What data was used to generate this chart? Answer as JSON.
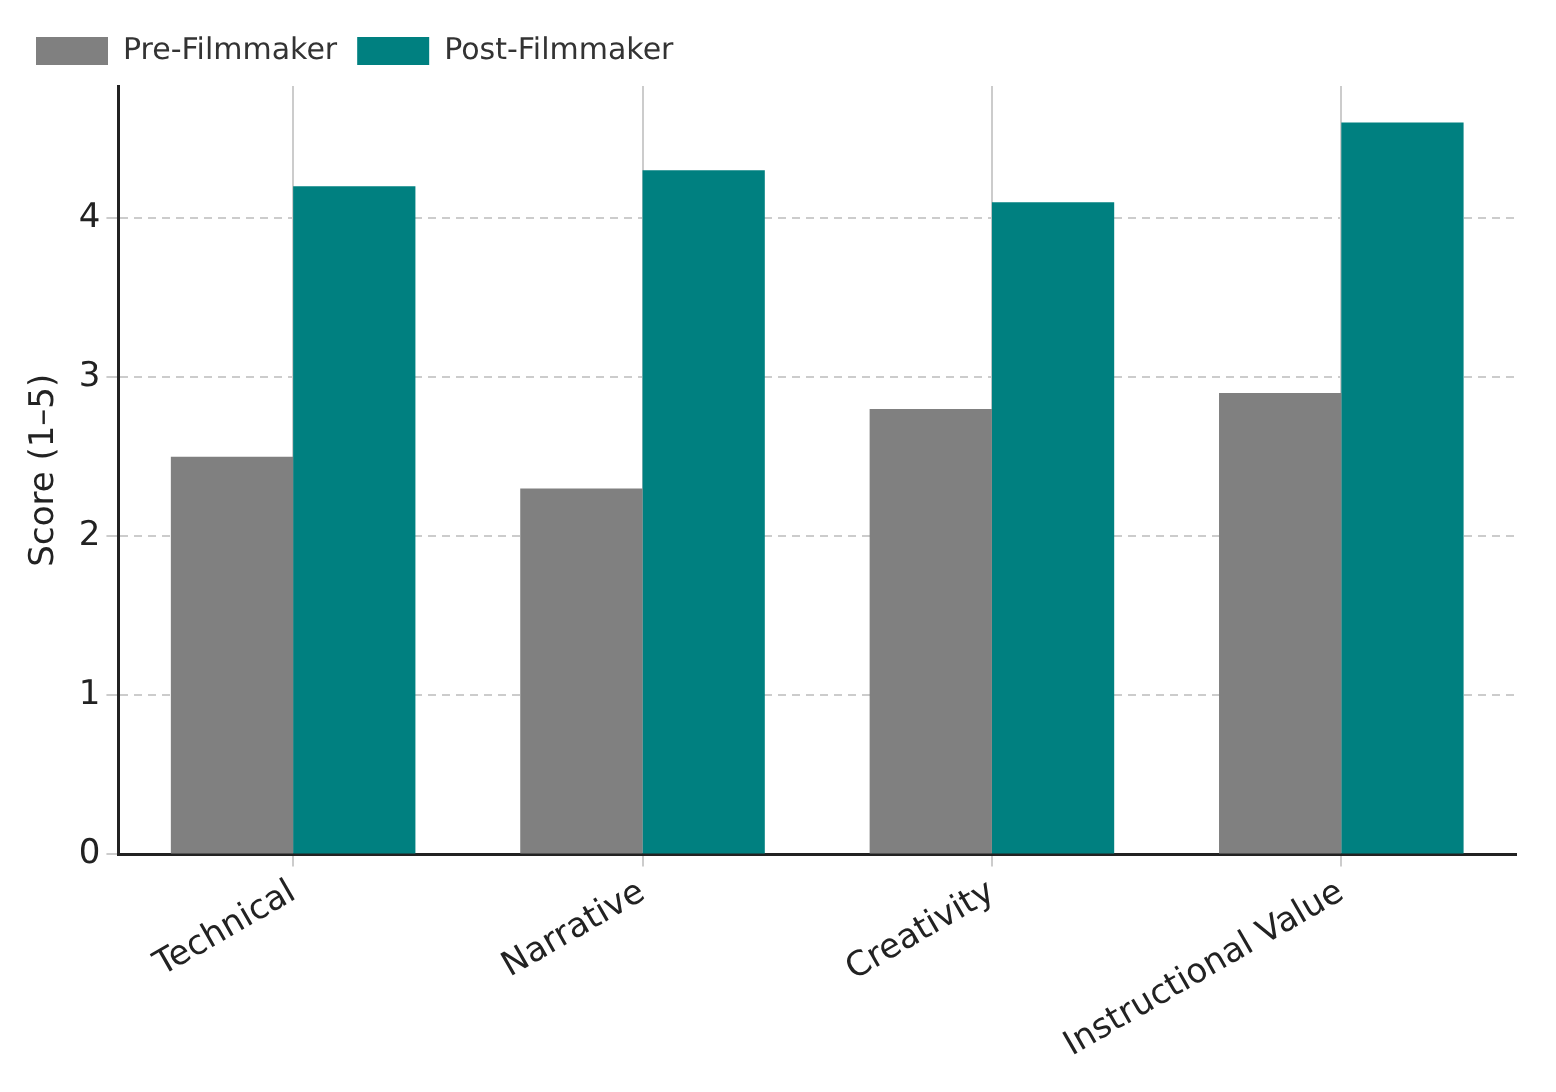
{
  "chart_data": {
    "type": "bar",
    "ylabel": "Score (1–5)",
    "categories": [
      "Technical",
      "Narrative",
      "Creativity",
      "Instructional Value"
    ],
    "series": [
      {
        "name": "Pre-Filmmaker",
        "color": "#808080",
        "values": [
          2.5,
          2.3,
          2.8,
          2.9
        ]
      },
      {
        "name": "Post-Filmmaker",
        "color": "#008080",
        "values": [
          4.2,
          4.3,
          4.1,
          4.6
        ]
      }
    ],
    "ylim": [
      0,
      4.83
    ],
    "yticks": [
      0,
      1,
      2,
      3,
      4
    ],
    "grid": true,
    "legend": "top left"
  }
}
